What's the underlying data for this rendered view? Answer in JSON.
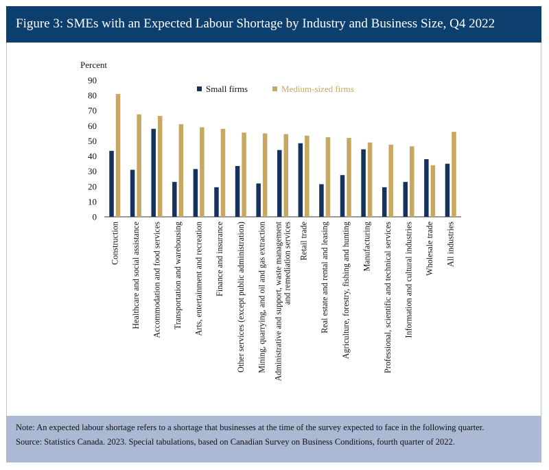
{
  "title": "Figure 3: SMEs with an Expected Labour Shortage by Industry and Business Size, Q4 2022",
  "footer": {
    "note": "Note: An expected labour shortage refers to a shortage that businesses at the time of the survey expected to face in the following quarter.",
    "source": "Source: Statistics Canada. 2023. Special tabulations, based on Canadian Survey on Business Conditions, fourth quarter of 2022."
  },
  "colors": {
    "small": "#14325c",
    "medium": "#c8a860",
    "header": "#0d3f6e",
    "footer": "#abb9d5"
  },
  "chart_data": {
    "type": "bar",
    "ylabel": "Percent",
    "ylim": [
      0,
      90
    ],
    "yticks": [
      0,
      10,
      20,
      30,
      40,
      50,
      60,
      70,
      80,
      90
    ],
    "legend_position": "top-center",
    "grid": false,
    "categories": [
      "Construction",
      "Healthcare and social assistance",
      "Accommodation and food services",
      "Transportation and warehousing",
      "Arts, entertainment and recreation",
      "Finance and insurance",
      "Other services (except public administration)",
      "Mining, quarrying, and oil and gas extraction",
      "Administrative and support, waste management|and remediation services",
      "Retail trade",
      "Real estate and rental and leasing",
      "Agriculture, forestry, fishing and hunting",
      "Manufacturing",
      "Professional, scientific and technical services",
      "Information and cultural industries",
      "Wholesale trade",
      "All industries"
    ],
    "series": [
      {
        "name": "Small firms",
        "values": [
          43.5,
          31,
          58,
          23,
          31.5,
          19.5,
          33.5,
          22,
          44,
          48.5,
          21.5,
          27.5,
          44.5,
          19.5,
          23,
          38,
          35
        ]
      },
      {
        "name": "Medium-sized firms",
        "values": [
          81,
          67.5,
          66.5,
          61,
          59,
          58,
          55.5,
          55,
          54.5,
          53.5,
          52.5,
          52,
          49,
          47.5,
          46.5,
          34,
          56
        ]
      }
    ]
  }
}
